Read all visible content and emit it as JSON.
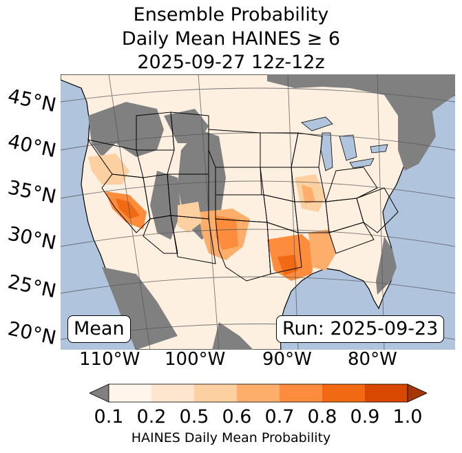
{
  "title": {
    "line1": "Ensemble Probability",
    "line2": "Daily Mean HAINES ≥ 6",
    "line3": "2025-09-27 12z-12z"
  },
  "map": {
    "ocean_color": "#b0c4de",
    "land_color": "#ffffff",
    "nodata_color": "#808080",
    "lat_labels": [
      "45°N",
      "40°N",
      "35°N",
      "30°N",
      "25°N",
      "20°N"
    ],
    "lon_labels": [
      "110°W",
      "100°W",
      "90°W",
      "80°W"
    ]
  },
  "stat_box": "Mean",
  "run_box": "Run: 2025-09-23",
  "colorbar": {
    "ticks": [
      "0.1",
      "0.2",
      "0.5",
      "0.6",
      "0.7",
      "0.8",
      "0.9",
      "1.0"
    ],
    "colors": [
      "#fff5eb",
      "#fee6ce",
      "#fdd0a2",
      "#fdae6b",
      "#fd8d3c",
      "#f16913",
      "#d94801"
    ],
    "under_color": "#808080",
    "over_color": "#a63603",
    "label": "HAINES Daily Mean Probability"
  }
}
